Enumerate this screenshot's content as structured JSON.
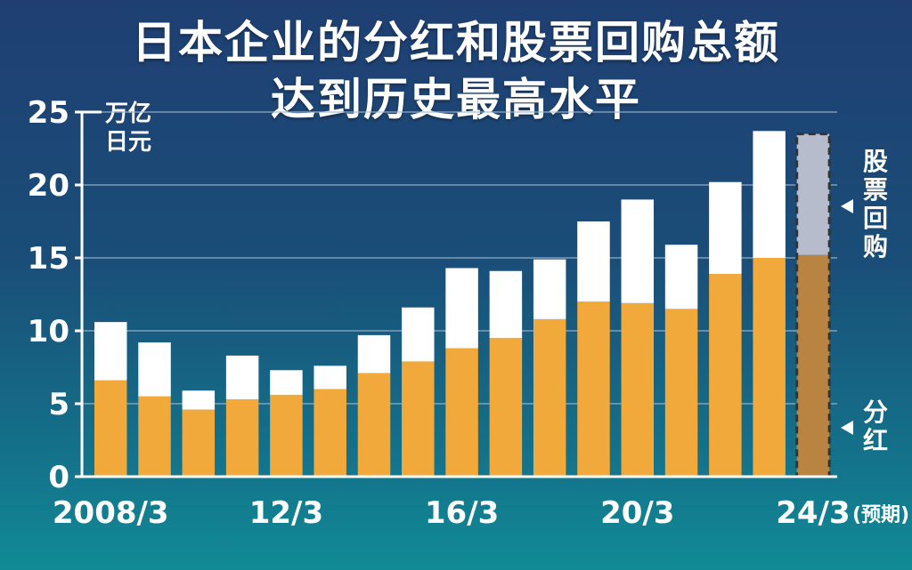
{
  "chart_data": {
    "type": "bar",
    "stacked": true,
    "title_lines": [
      "日本企业的分红和股票回购总额",
      "达到历史最高水平"
    ],
    "unit_lines": [
      "万亿",
      "日元"
    ],
    "yticks": [
      0,
      5,
      10,
      15,
      20,
      25
    ],
    "ylim": [
      0,
      25
    ],
    "grid": true,
    "categories": [
      "2008/3",
      "2009/3",
      "2010/3",
      "2011/3",
      "2012/3",
      "2013/3",
      "2014/3",
      "2015/3",
      "2016/3",
      "2017/3",
      "2018/3",
      "2019/3",
      "2020/3",
      "2021/3",
      "2022/3",
      "2023/3",
      "2024/3"
    ],
    "xtick_labels": [
      {
        "category": "2008/3",
        "text": "2008/3"
      },
      {
        "category": "2012/3",
        "text": "12/3"
      },
      {
        "category": "2016/3",
        "text": "16/3"
      },
      {
        "category": "2020/3",
        "text": "20/3"
      },
      {
        "category": "2024/3",
        "text": "24/3"
      }
    ],
    "forecast_note": "(预期)",
    "forecast_category": "2024/3",
    "series": [
      {
        "name": "分红",
        "color": "#f2a93b",
        "forecast_color": "#b98442",
        "values": [
          6.6,
          5.5,
          4.6,
          5.3,
          5.6,
          6.0,
          7.1,
          7.9,
          8.8,
          9.5,
          10.8,
          12.0,
          11.9,
          11.5,
          13.9,
          15.0,
          15.2
        ]
      },
      {
        "name": "股票回购",
        "color": "#ffffff",
        "forecast_color": "#b7bccd",
        "values": [
          4.0,
          3.7,
          1.3,
          3.0,
          1.7,
          1.6,
          2.6,
          3.7,
          5.5,
          4.6,
          4.1,
          5.5,
          7.1,
          4.4,
          6.3,
          8.7,
          8.3
        ]
      }
    ],
    "side_labels": {
      "top": "股票回购",
      "bottom": "分红"
    },
    "colors": {
      "text": "#ffffff",
      "grid": "#9fb8cf",
      "axis": "#ffffff",
      "forecast_outline": "#333333"
    }
  }
}
